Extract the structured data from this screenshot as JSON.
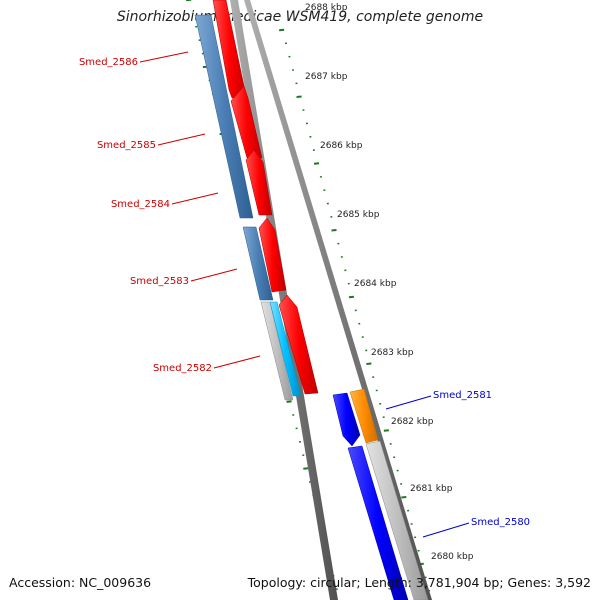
{
  "title": "Sinorhizobium medicae WSM419, complete genome",
  "footer": {
    "accession": "Accession: NC_009636",
    "topology": "Topology: circular; Length: 3,781,904 bp; Genes: 3,592"
  },
  "colors": {
    "tick": "#1e7a1e",
    "strand_outline": "#8a8a8a",
    "label_minus": "#cc0000",
    "label_plus": "#0000cc",
    "ruler_text": "#222222"
  },
  "ruler": [
    {
      "label": "2688 kbp"
    },
    {
      "label": "2687 kbp"
    },
    {
      "label": "2686 kbp"
    },
    {
      "label": "2685 kbp"
    },
    {
      "label": "2684 kbp"
    },
    {
      "label": "2683 kbp"
    },
    {
      "label": "2682 kbp"
    },
    {
      "label": "2681 kbp"
    },
    {
      "label": "2680 kbp"
    }
  ],
  "genes": [
    {
      "name": "Smed_2586",
      "strand": "minus"
    },
    {
      "name": "Smed_2585",
      "strand": "minus"
    },
    {
      "name": "Smed_2584",
      "strand": "minus"
    },
    {
      "name": "Smed_2583",
      "strand": "minus"
    },
    {
      "name": "Smed_2582",
      "strand": "minus"
    },
    {
      "name": "Smed_2581",
      "strand": "plus"
    },
    {
      "name": "Smed_2580",
      "strand": "plus"
    }
  ],
  "feature_colors": {
    "cds": "#ff0000",
    "gene": "#4a7fb5",
    "rna": "#00bfff",
    "pseudo": "#c0c0c0",
    "cds_plus": "#0000ff",
    "misc": "#ff8c00"
  }
}
